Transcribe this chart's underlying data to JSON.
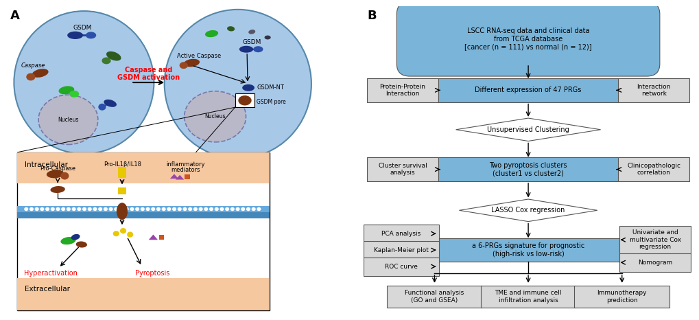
{
  "fig_width": 10.2,
  "fig_height": 4.66,
  "dpi": 100,
  "bg_color": "#ffffff",
  "cell_color": "#a8c8e8",
  "nucleus_color": "#c8c8c8",
  "blue_c": "#7ab4d8",
  "gray_c": "#d8d8d8",
  "top_box_text": "LSCC RNA-seq data and clinical data\nfrom TCGA database\n[cancer (n = 111) vs normal (n = 12)]",
  "box2_text": "Different expression of 47 PRGs",
  "box_ppi_text": "Protein-Protein\nInteraction",
  "box_net_text": "Interaction\nnetwork",
  "diamond1_text": "Unsupervised Clustering",
  "box3_text": "Two pyroptosis clusters\n(cluster1 vs cluster2)",
  "box_surv_text": "Cluster survival\nanalysis",
  "box_clin_text": "Clinicopathologic\ncorrelation",
  "diamond2_text": "LASSO Cox regression",
  "box4_text": "a 6-PRGs signature for prognostic\n(high-risk vs low-risk)",
  "box_pca_text": "PCA analysis",
  "box_km_text": "Kaplan-Meier plot",
  "box_roc_text": "ROC curve",
  "box_uni_text": "Univariate and\nmultivariate Cox\nregression",
  "box_nom_text": "Nomogram",
  "bot_left_text": "Functional analysis\n(GO and GSEA)",
  "bot_mid_text": "TME and immune cell\ninfiltration analysis",
  "bot_right_text": "Immunotherapy\nprediction",
  "intracell_text": "Intracellular",
  "extracell_text": "Extracellular",
  "procaspase_text": "Pro-Caspase",
  "il_text": "Pro-IL1β/IL18",
  "inflam_text": "inflammatory\nmediators",
  "hyperact_text": "Hyperactivation",
  "pyropt_text": "Pyroptosis",
  "gsdm_pore_text": "GSDM pore",
  "caspase_act_text": "Caspase and\nGSDM activation",
  "gsdm_text": "GSDM",
  "caspase_text": "Caspase",
  "active_caspase_text": "Active Caspase",
  "gsdm_nt_text": "GSDM-NT",
  "nucleus_text": "Nucleus"
}
